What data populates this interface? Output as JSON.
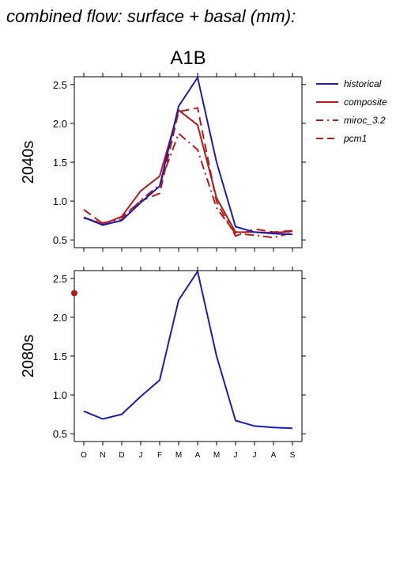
{
  "page": {
    "title": "combined flow: surface + basal (mm):"
  },
  "chart_data": {
    "type": "line",
    "title": "A1B",
    "categories": [
      "O",
      "N",
      "D",
      "J",
      "F",
      "M",
      "A",
      "M",
      "J",
      "J",
      "A",
      "S"
    ],
    "ylim": [
      0.4,
      2.6
    ],
    "yticks": [
      0.5,
      1.0,
      1.5,
      2.0,
      2.5
    ],
    "ytick_labels": [
      "0.5",
      "1.0",
      "1.5",
      "2.0",
      "2.5"
    ],
    "legend_position": "right",
    "colors": {
      "historical": "#1c1cb4",
      "scenario": "#b01c1c"
    },
    "legend": [
      {
        "name": "historical",
        "color": "#1c1cb4",
        "dash": "solid"
      },
      {
        "name": "composite",
        "color": "#b01c1c",
        "dash": "solid"
      },
      {
        "name": "miroc_3.2",
        "color": "#b01c1c",
        "dash": "dashdot"
      },
      {
        "name": "pcm1",
        "color": "#b01c1c",
        "dash": "dashed"
      }
    ],
    "panels": [
      {
        "label": "2040s",
        "series": [
          {
            "name": "historical",
            "values": [
              0.79,
              0.69,
              0.75,
              0.98,
              1.19,
              2.22,
              2.59,
              1.5,
              0.67,
              0.6,
              0.58,
              0.57
            ]
          },
          {
            "name": "composite",
            "values": [
              0.79,
              0.7,
              0.8,
              1.13,
              1.32,
              2.17,
              1.98,
              1.04,
              0.6,
              0.6,
              0.59,
              0.61
            ]
          },
          {
            "name": "miroc_3.2",
            "values": [
              0.78,
              0.72,
              0.76,
              1.01,
              1.21,
              1.87,
              1.66,
              0.91,
              0.58,
              0.56,
              0.53,
              0.59
            ]
          },
          {
            "name": "pcm1",
            "values": [
              0.89,
              0.71,
              0.79,
              1.0,
              1.1,
              2.15,
              2.2,
              0.99,
              0.55,
              0.64,
              0.6,
              0.62
            ]
          }
        ]
      },
      {
        "label": "2080s",
        "series": [
          {
            "name": "historical",
            "values": [
              0.79,
              0.69,
              0.75,
              0.98,
              1.19,
              2.22,
              2.59,
              1.5,
              0.67,
              0.6,
              0.58,
              0.57
            ]
          }
        ],
        "edge_marker": {
          "value": 2.31,
          "color": "#b01c1c"
        }
      }
    ]
  }
}
